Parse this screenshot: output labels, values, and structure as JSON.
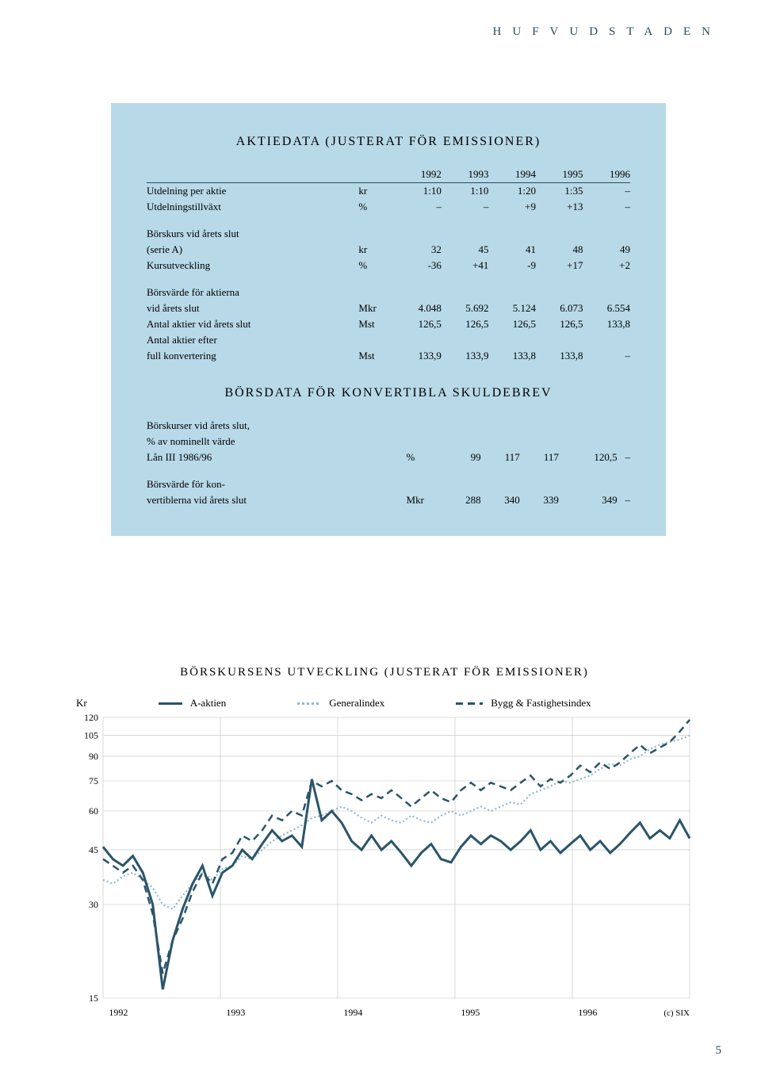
{
  "header": {
    "letters": "HUFVUDSTADEN"
  },
  "panel": {
    "title1": "AKTIEDATA (JUSTERAT FÖR EMISSIONER)",
    "years": [
      "1992",
      "1993",
      "1994",
      "1995",
      "1996"
    ],
    "rows1": [
      {
        "label": "Utdelning per aktie",
        "unit": "kr",
        "v": [
          "1:10",
          "1:10",
          "1:20",
          "1:35",
          "–"
        ]
      },
      {
        "label": "Utdelningstillväxt",
        "unit": "%",
        "v": [
          "–",
          "–",
          "+9",
          "+13",
          "–"
        ]
      }
    ],
    "rows2": [
      {
        "label": "Börskurs vid årets slut",
        "unit": "",
        "v": [
          "",
          "",
          "",
          "",
          ""
        ]
      },
      {
        "label": "(serie A)",
        "unit": "kr",
        "v": [
          "32",
          "45",
          "41",
          "48",
          "49"
        ]
      },
      {
        "label": "Kursutveckling",
        "unit": "%",
        "v": [
          "-36",
          "+41",
          "-9",
          "+17",
          "+2"
        ]
      }
    ],
    "rows3": [
      {
        "label": "Börsvärde för aktierna",
        "unit": "",
        "v": [
          "",
          "",
          "",
          "",
          ""
        ]
      },
      {
        "label": "vid årets slut",
        "unit": "Mkr",
        "v": [
          "4.048",
          "5.692",
          "5.124",
          "6.073",
          "6.554"
        ]
      },
      {
        "label": "Antal aktier vid årets slut",
        "unit": "Mst",
        "v": [
          "126,5",
          "126,5",
          "126,5",
          "126,5",
          "133,8"
        ]
      },
      {
        "label": "Antal aktier efter",
        "unit": "",
        "v": [
          "",
          "",
          "",
          "",
          ""
        ]
      },
      {
        "label": "full konvertering",
        "unit": "Mst",
        "v": [
          "133,9",
          "133,9",
          "133,8",
          "133,8",
          "–"
        ]
      }
    ],
    "title2": "BÖRSDATA FÖR KONVERTIBLA SKULDEBREV",
    "rows4": [
      {
        "label": "Börskurser vid årets slut,",
        "unit": "",
        "v": [
          "",
          "",
          "",
          "",
          ""
        ]
      },
      {
        "label": "% av nominellt värde",
        "unit": "",
        "v": [
          "",
          "",
          "",
          "",
          ""
        ]
      },
      {
        "label": "Lån III 1986/96",
        "unit": "%",
        "v": [
          "99",
          "117",
          "117",
          "120,5",
          "–"
        ]
      }
    ],
    "rows5": [
      {
        "label": "Börsvärde för kon-",
        "unit": "",
        "v": [
          "",
          "",
          "",
          "",
          ""
        ]
      },
      {
        "label": "vertiblerna vid årets slut",
        "unit": "Mkr",
        "v": [
          "288",
          "340",
          "339",
          "349",
          "–"
        ]
      }
    ]
  },
  "chart": {
    "title": "BÖRSKURSENS UTVECKLING (JUSTERAT FÖR EMISSIONER)",
    "axis_label": "Kr",
    "legend": {
      "a": "A-aktien",
      "b": "Generalindex",
      "c": "Bygg & Fastighetsindex"
    },
    "yticks": [
      15,
      30,
      45,
      60,
      75,
      90,
      105,
      120
    ],
    "xticks": [
      "1992",
      "1993",
      "1994",
      "1995",
      "1996"
    ],
    "credit": "(c) SIX",
    "colors": {
      "grid": "#bfbfbf",
      "line_a": "#2a5568",
      "line_b": "#8fb8cc",
      "line_c": "#2a5568",
      "bg": "#ffffff"
    },
    "series_a": [
      46,
      42,
      40,
      43,
      38,
      30,
      16,
      23,
      29,
      35,
      40,
      32,
      38,
      40,
      45,
      42,
      47,
      52,
      48,
      50,
      46,
      76,
      56,
      60,
      55,
      48,
      45,
      50,
      45,
      48,
      44,
      40,
      44,
      47,
      42,
      41,
      46,
      50,
      47,
      50,
      48,
      45,
      48,
      52,
      45,
      48,
      44,
      47,
      50,
      45,
      48,
      44,
      47,
      51,
      55,
      49,
      52,
      49,
      56,
      49
    ],
    "series_b": [
      36,
      35,
      37,
      38,
      36,
      34,
      30,
      29,
      32,
      35,
      38,
      36,
      39,
      40,
      43,
      42,
      45,
      48,
      50,
      52,
      54,
      57,
      58,
      60,
      62,
      60,
      57,
      55,
      58,
      56,
      55,
      58,
      56,
      55,
      58,
      60,
      58,
      60,
      62,
      60,
      62,
      64,
      63,
      68,
      70,
      72,
      75,
      74,
      76,
      78,
      82,
      85,
      84,
      88,
      90,
      95,
      98,
      100,
      102,
      105
    ],
    "series_c": [
      42,
      40,
      38,
      40,
      36,
      28,
      18,
      23,
      27,
      33,
      38,
      35,
      42,
      44,
      50,
      48,
      52,
      58,
      56,
      60,
      58,
      75,
      72,
      75,
      70,
      68,
      65,
      68,
      66,
      70,
      66,
      62,
      66,
      70,
      66,
      64,
      70,
      74,
      70,
      74,
      72,
      70,
      74,
      78,
      72,
      76,
      74,
      78,
      84,
      80,
      86,
      82,
      86,
      92,
      98,
      92,
      96,
      100,
      108,
      118
    ],
    "line_width_a": 3,
    "line_width_c": 2.5
  },
  "page_number": "5"
}
